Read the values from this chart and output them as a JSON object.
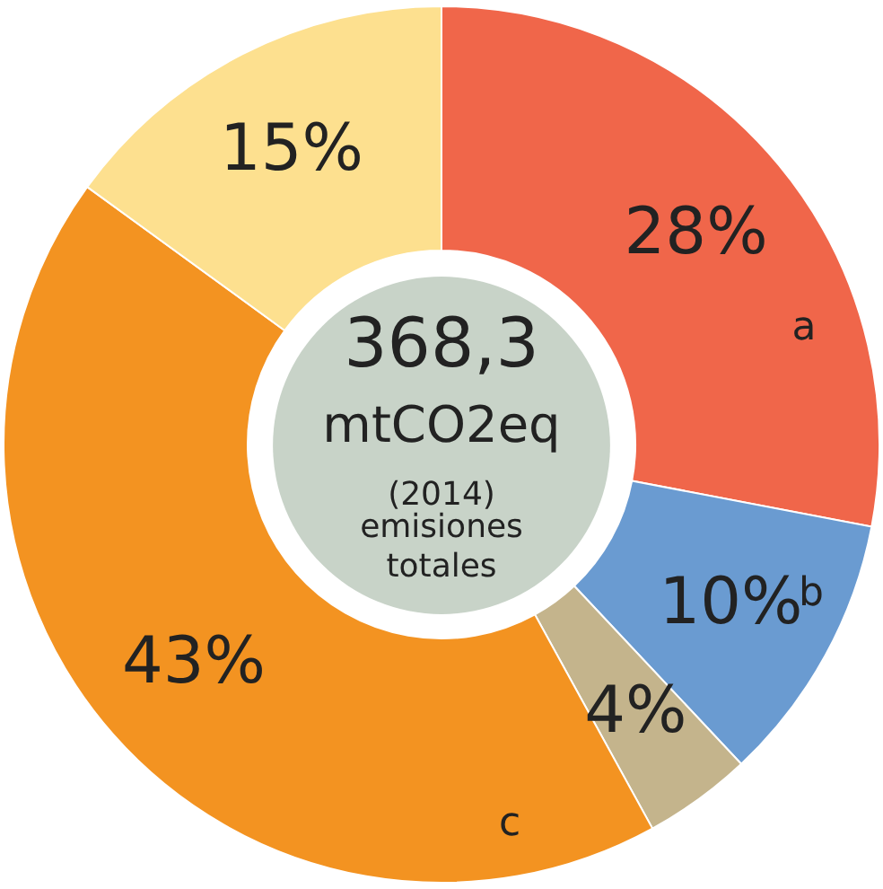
{
  "chart_data": {
    "type": "donut",
    "title": "368,3",
    "subtitle": "mtCO2eq",
    "categories": [
      null,
      null,
      null,
      null,
      null
    ],
    "values": [
      28,
      10,
      4,
      43,
      15
    ],
    "value_labels": [
      "28%",
      "10%",
      "4%",
      "43%",
      "15%"
    ],
    "colors": [
      "#f0664a",
      "#6a9bd1",
      "#c4b48c",
      "#f39321",
      "#fde08f"
    ],
    "annotations": [
      "(2014)",
      "emisiones totales",
      "a",
      "b",
      "c"
    ]
  }
}
